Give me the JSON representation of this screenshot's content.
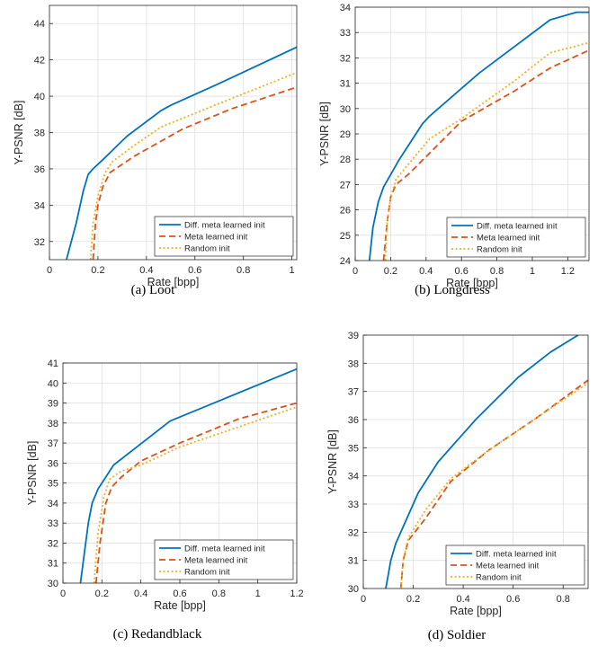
{
  "colors": {
    "series": [
      "#0072BD",
      "#D95319",
      "#EDB120"
    ],
    "grid": "#dfdfdf",
    "axis": "#262626"
  },
  "chart_data": [
    {
      "type": "line",
      "caption": "(a) Loot",
      "xlabel": "Rate [bpp]",
      "ylabel": "Y-PSNR [dB]",
      "xlim": [
        0,
        1.02
      ],
      "ylim": [
        31,
        45
      ],
      "xticks": [
        0,
        0.2,
        0.4,
        0.6,
        0.8,
        1
      ],
      "xtick_labels": [
        "0",
        "0.2",
        "0.4",
        "0.6",
        "0.8",
        "1"
      ],
      "yticks": [
        32,
        34,
        36,
        38,
        40,
        42,
        44
      ],
      "ytick_labels": [
        "32",
        "34",
        "36",
        "38",
        "40",
        "42",
        "44"
      ],
      "grid": true,
      "legend_position": "bottom-right",
      "series": [
        {
          "name": "Diff. meta learned init",
          "style": "solid",
          "x": [
            0.07,
            0.11,
            0.14,
            0.16,
            0.18,
            0.22,
            0.32,
            0.46,
            0.5,
            0.7,
            1.02
          ],
          "y": [
            31.0,
            33.0,
            34.8,
            35.7,
            36.0,
            36.5,
            37.8,
            39.2,
            39.5,
            40.7,
            42.7
          ]
        },
        {
          "name": "Meta learned init",
          "style": "dashed",
          "x": [
            0.18,
            0.19,
            0.2,
            0.22,
            0.25,
            0.35,
            0.55,
            0.75,
            1.02
          ],
          "y": [
            31.0,
            33.0,
            34.0,
            35.0,
            35.8,
            36.7,
            38.2,
            39.3,
            40.5
          ]
        },
        {
          "name": "Random init",
          "style": "dotted",
          "x": [
            0.17,
            0.18,
            0.2,
            0.23,
            0.26,
            0.35,
            0.46,
            0.7,
            1.02
          ],
          "y": [
            31.0,
            33.0,
            34.5,
            35.8,
            36.4,
            37.3,
            38.3,
            39.6,
            41.3
          ]
        }
      ]
    },
    {
      "type": "line",
      "caption": "(b) Longdress",
      "xlabel": "Rate [bpp]",
      "ylabel": "Y-PSNR [dB]",
      "xlim": [
        0,
        1.32
      ],
      "ylim": [
        24,
        34
      ],
      "xticks": [
        0,
        0.2,
        0.4,
        0.6,
        0.8,
        1,
        1.2
      ],
      "xtick_labels": [
        "0",
        "0.2",
        "0.4",
        "0.6",
        "0.8",
        "1",
        "1.2"
      ],
      "yticks": [
        24,
        25,
        26,
        27,
        28,
        29,
        30,
        31,
        32,
        33,
        34
      ],
      "ytick_labels": [
        "24",
        "25",
        "26",
        "27",
        "28",
        "29",
        "30",
        "31",
        "32",
        "33",
        "34"
      ],
      "grid": true,
      "legend_position": "bottom-right",
      "series": [
        {
          "name": "Diff. meta learned init",
          "style": "solid",
          "x": [
            0.08,
            0.1,
            0.13,
            0.16,
            0.25,
            0.38,
            0.42,
            0.7,
            1.1,
            1.25,
            1.32
          ],
          "y": [
            24.0,
            25.3,
            26.3,
            26.9,
            28.0,
            29.4,
            29.7,
            31.4,
            33.5,
            33.8,
            33.8
          ]
        },
        {
          "name": "Meta learned init",
          "style": "dashed",
          "x": [
            0.16,
            0.18,
            0.2,
            0.23,
            0.3,
            0.6,
            0.9,
            1.1,
            1.32
          ],
          "y": [
            24.0,
            25.5,
            26.5,
            27.0,
            27.4,
            29.5,
            30.7,
            31.6,
            32.3
          ]
        },
        {
          "name": "Random init",
          "style": "dotted",
          "x": [
            0.17,
            0.18,
            0.2,
            0.23,
            0.3,
            0.42,
            0.6,
            0.9,
            1.1,
            1.32
          ],
          "y": [
            24.0,
            25.5,
            26.5,
            27.2,
            27.8,
            28.8,
            29.6,
            31.1,
            32.2,
            32.6
          ]
        }
      ]
    },
    {
      "type": "line",
      "caption": "(c) Redandblack",
      "xlabel": "Rate [bpp]",
      "ylabel": "Y-PSNR [dB]",
      "xlim": [
        0,
        1.2
      ],
      "ylim": [
        30,
        41
      ],
      "xticks": [
        0,
        0.2,
        0.4,
        0.6,
        0.8,
        1,
        1.2
      ],
      "xtick_labels": [
        "0",
        "0.2",
        "0.4",
        "0.6",
        "0.8",
        "1",
        "1.2"
      ],
      "yticks": [
        30,
        31,
        32,
        33,
        34,
        35,
        36,
        37,
        38,
        39,
        40,
        41
      ],
      "ytick_labels": [
        "30",
        "31",
        "32",
        "33",
        "34",
        "35",
        "36",
        "37",
        "38",
        "39",
        "40",
        "41"
      ],
      "grid": true,
      "legend_position": "bottom-right",
      "series": [
        {
          "name": "Diff. meta learned init",
          "style": "solid",
          "x": [
            0.09,
            0.11,
            0.13,
            0.15,
            0.18,
            0.26,
            0.55,
            0.8,
            1.2
          ],
          "y": [
            30.0,
            31.5,
            33.0,
            34.0,
            34.7,
            35.9,
            38.1,
            39.1,
            40.7
          ]
        },
        {
          "name": "Meta learned init",
          "style": "dashed",
          "x": [
            0.17,
            0.19,
            0.22,
            0.25,
            0.3,
            0.4,
            0.6,
            0.9,
            1.2
          ],
          "y": [
            30.0,
            32.0,
            34.0,
            34.8,
            35.3,
            36.1,
            37.0,
            38.2,
            39.0
          ]
        },
        {
          "name": "Random init",
          "style": "dotted",
          "x": [
            0.16,
            0.18,
            0.21,
            0.24,
            0.3,
            0.4,
            0.6,
            0.9,
            1.2
          ],
          "y": [
            30.0,
            32.5,
            34.3,
            35.2,
            35.6,
            35.9,
            36.8,
            37.8,
            38.8
          ]
        }
      ]
    },
    {
      "type": "line",
      "caption": "(d) Soldier",
      "xlabel": "Rate [bpp]",
      "ylabel": "Y-PSNR [dB]",
      "xlim": [
        0,
        0.9
      ],
      "ylim": [
        30,
        39
      ],
      "xticks": [
        0,
        0.2,
        0.4,
        0.6,
        0.8
      ],
      "xtick_labels": [
        "0",
        "0.2",
        "0.4",
        "0.6",
        "0.8"
      ],
      "yticks": [
        30,
        31,
        32,
        33,
        34,
        35,
        36,
        37,
        38,
        39
      ],
      "ytick_labels": [
        "30",
        "31",
        "32",
        "33",
        "34",
        "35",
        "36",
        "37",
        "38",
        "39"
      ],
      "grid": true,
      "legend_position": "bottom-right",
      "series": [
        {
          "name": "Diff. meta learned init",
          "style": "solid",
          "x": [
            0.09,
            0.11,
            0.13,
            0.22,
            0.3,
            0.45,
            0.62,
            0.75,
            0.86
          ],
          "y": [
            30.0,
            31.0,
            31.6,
            33.4,
            34.5,
            36.0,
            37.5,
            38.4,
            39.0
          ]
        },
        {
          "name": "Meta learned init",
          "style": "dashed",
          "x": [
            0.15,
            0.16,
            0.18,
            0.25,
            0.35,
            0.5,
            0.7,
            0.9
          ],
          "y": [
            30.0,
            31.0,
            31.7,
            32.5,
            33.8,
            34.9,
            36.1,
            37.4
          ]
        },
        {
          "name": "Random init",
          "style": "dotted",
          "x": [
            0.15,
            0.16,
            0.18,
            0.25,
            0.35,
            0.5,
            0.7,
            0.9
          ],
          "y": [
            30.0,
            31.0,
            31.8,
            32.8,
            33.9,
            34.9,
            36.1,
            37.3
          ]
        }
      ]
    }
  ]
}
